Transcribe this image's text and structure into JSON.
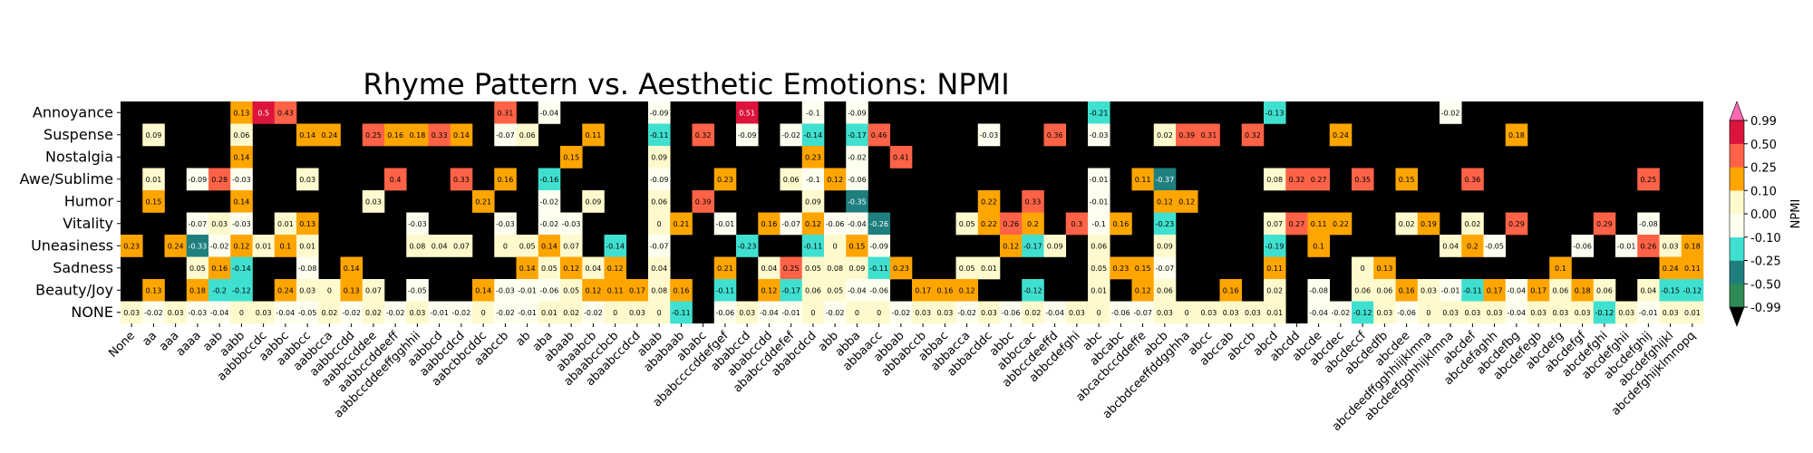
{
  "chart_data": {
    "type": "heatmap",
    "title": "Rhyme Pattern vs. Aesthetic Emotions: NPMI",
    "colorbar_label": "NPMI",
    "colorbar_ticks": [
      "0.99",
      "0.50",
      "0.25",
      "0.10",
      "0.00",
      "-0.10",
      "-0.25",
      "-0.50",
      "-0.99"
    ],
    "colorbar_bounds": [
      -0.99,
      -0.5,
      -0.25,
      -0.1,
      0.0,
      0.1,
      0.25,
      0.5,
      0.99
    ],
    "colorbar_colors": [
      "#2e8b57",
      "#1f7f7f",
      "#40e0d0",
      "#fffff0",
      "#fffacd",
      "#ffa500",
      "#ff6347",
      "#dc143c"
    ],
    "colorbar_under": "#000000",
    "colorbar_over": "#ff69b4",
    "missing_color": "#000000",
    "rows": [
      "Annoyance",
      "Suspense",
      "Nostalgia",
      "Awe/Sublime",
      "Humor",
      "Vitality",
      "Uneasiness",
      "Sadness",
      "Beauty/Joy",
      "NONE"
    ],
    "columns": [
      "None",
      "aa",
      "aaa",
      "aaaa",
      "aab",
      "aabb",
      "aabbbccdc",
      "aabbc",
      "aabbcc",
      "aabbcca",
      "aabbccdd",
      "aabbccddee",
      "aabbccddeeff",
      "aabbccddeeffgghhii",
      "aabbcd",
      "aabbcdcd",
      "aabcbbcddc",
      "aabccb",
      "ab",
      "aba",
      "abaab",
      "abaabcb",
      "abaabccbcb",
      "abaabccdcd",
      "abab",
      "ababaab",
      "ababc",
      "ababccccddefgef",
      "ababccd",
      "ababccdd",
      "ababccddefef",
      "ababcdcd",
      "abb",
      "abba",
      "abbaacc",
      "abbab",
      "abbabccb",
      "abbac",
      "abbacca",
      "abbacddc",
      "abbc",
      "abbccac",
      "abbccdeeffd",
      "abbcdefghi",
      "abc",
      "abcabc",
      "abcacbccddeffe",
      "abcb",
      "abcbdceeffddgghha",
      "abcc",
      "abccab",
      "abccb",
      "abcd",
      "abcdd",
      "abcde",
      "abcdec",
      "abcdeccf",
      "abcdedfb",
      "abcdee",
      "abcdeedffgghhiijklmna",
      "abcdeefgghhijklmna",
      "abcdef",
      "abcdefaghh",
      "abcdefbg",
      "abcdefegb",
      "abcdefg",
      "abcdefgf",
      "abcdefghi",
      "abcdefghii",
      "abcdefghij",
      "abcdefghijkl",
      "abcdefghijklmnopq"
    ],
    "values": [
      [
        null,
        null,
        null,
        null,
        null,
        0.13,
        0.5,
        0.43,
        null,
        null,
        null,
        null,
        null,
        null,
        null,
        null,
        null,
        0.31,
        null,
        -0.04,
        null,
        null,
        null,
        null,
        -0.09,
        null,
        null,
        null,
        0.51,
        null,
        null,
        -0.1,
        null,
        -0.09,
        null,
        null,
        null,
        null,
        null,
        null,
        null,
        null,
        null,
        null,
        -0.21,
        null,
        null,
        null,
        null,
        null,
        null,
        null,
        -0.13,
        null,
        null,
        null,
        null,
        null,
        null,
        null,
        -0.02,
        null,
        null,
        null,
        null,
        null,
        null,
        null,
        null,
        null,
        null,
        null
      ],
      [
        null,
        0.09,
        null,
        null,
        null,
        0.06,
        null,
        null,
        0.14,
        0.24,
        null,
        0.25,
        0.16,
        0.18,
        0.33,
        0.14,
        null,
        -0.07,
        0.06,
        null,
        null,
        0.11,
        null,
        null,
        -0.11,
        null,
        0.32,
        null,
        -0.09,
        null,
        -0.02,
        -0.14,
        null,
        -0.17,
        0.46,
        null,
        null,
        null,
        null,
        -0.03,
        null,
        null,
        0.36,
        null,
        -0.03,
        null,
        null,
        0.02,
        0.39,
        0.31,
        null,
        0.32,
        null,
        null,
        null,
        0.24,
        null,
        null,
        null,
        null,
        null,
        null,
        null,
        0.18,
        null,
        null,
        null,
        null,
        null,
        null,
        null,
        null
      ],
      [
        null,
        null,
        null,
        null,
        null,
        0.14,
        null,
        null,
        null,
        null,
        null,
        null,
        null,
        null,
        null,
        null,
        null,
        null,
        null,
        null,
        0.15,
        null,
        null,
        null,
        0.09,
        null,
        null,
        null,
        null,
        null,
        null,
        0.23,
        null,
        -0.02,
        null,
        0.41,
        null,
        null,
        null,
        null,
        null,
        null,
        null,
        null,
        null,
        null,
        null,
        null,
        null,
        null,
        null,
        null,
        null,
        null,
        null,
        null,
        null,
        null,
        null,
        null,
        null,
        null,
        null,
        null,
        null,
        null,
        null,
        null,
        null,
        null,
        null,
        null
      ],
      [
        null,
        0.01,
        null,
        -0.09,
        0.28,
        -0.03,
        null,
        null,
        0.03,
        null,
        null,
        null,
        0.4,
        null,
        null,
        0.33,
        null,
        0.16,
        null,
        -0.16,
        null,
        null,
        null,
        null,
        -0.09,
        null,
        null,
        0.23,
        null,
        null,
        0.06,
        -0.1,
        0.12,
        -0.06,
        null,
        null,
        null,
        null,
        null,
        null,
        null,
        null,
        null,
        null,
        -0.01,
        null,
        0.11,
        -0.37,
        null,
        null,
        null,
        null,
        0.08,
        0.32,
        0.27,
        null,
        0.35,
        null,
        0.15,
        null,
        null,
        0.36,
        null,
        null,
        null,
        null,
        null,
        null,
        null,
        0.25,
        null,
        null
      ],
      [
        null,
        0.15,
        null,
        null,
        null,
        0.14,
        null,
        null,
        null,
        null,
        null,
        0.03,
        null,
        null,
        null,
        null,
        0.21,
        null,
        null,
        -0.02,
        null,
        0.09,
        null,
        null,
        0.06,
        null,
        0.39,
        null,
        null,
        null,
        null,
        0.09,
        null,
        -0.35,
        null,
        null,
        null,
        null,
        null,
        0.22,
        null,
        0.33,
        null,
        null,
        -0.01,
        null,
        null,
        0.12,
        0.12,
        null,
        null,
        null,
        null,
        null,
        null,
        null,
        null,
        null,
        null,
        null,
        null,
        null,
        null,
        null,
        null,
        null,
        null,
        null,
        null,
        null,
        null,
        null
      ],
      [
        null,
        null,
        null,
        -0.07,
        0.03,
        -0.03,
        null,
        0.01,
        0.13,
        null,
        null,
        null,
        null,
        -0.03,
        null,
        null,
        null,
        -0.03,
        null,
        -0.02,
        -0.03,
        null,
        null,
        null,
        0.0,
        0.21,
        null,
        -0.01,
        null,
        0.16,
        -0.07,
        0.12,
        -0.06,
        -0.04,
        -0.26,
        null,
        null,
        null,
        0.05,
        0.22,
        0.26,
        0.2,
        null,
        0.3,
        -0.1,
        0.16,
        null,
        -0.23,
        null,
        null,
        null,
        null,
        0.07,
        0.27,
        0.11,
        0.22,
        null,
        null,
        0.02,
        0.19,
        null,
        0.02,
        null,
        0.29,
        null,
        null,
        null,
        0.29,
        null,
        -0.08,
        null,
        null
      ],
      [
        0.23,
        null,
        0.24,
        -0.33,
        -0.02,
        0.12,
        0.01,
        0.1,
        0.01,
        null,
        null,
        null,
        null,
        0.08,
        0.04,
        0.07,
        null,
        0.0,
        0.05,
        0.14,
        0.07,
        null,
        -0.14,
        null,
        -0.07,
        null,
        null,
        null,
        -0.23,
        null,
        null,
        -0.11,
        -0.0,
        0.15,
        -0.09,
        null,
        null,
        null,
        null,
        null,
        0.12,
        -0.17,
        0.09,
        null,
        0.06,
        null,
        null,
        0.09,
        null,
        null,
        null,
        null,
        -0.19,
        null,
        0.1,
        null,
        null,
        null,
        null,
        null,
        0.04,
        0.2,
        -0.05,
        null,
        null,
        null,
        -0.06,
        null,
        -0.01,
        0.26,
        0.03,
        0.18
      ],
      [
        null,
        null,
        null,
        0.05,
        0.16,
        -0.14,
        null,
        null,
        -0.08,
        null,
        0.14,
        null,
        null,
        null,
        null,
        null,
        null,
        null,
        0.14,
        0.05,
        0.12,
        0.04,
        0.12,
        null,
        0.04,
        null,
        null,
        0.21,
        null,
        0.04,
        0.25,
        0.05,
        0.08,
        0.09,
        -0.11,
        0.23,
        null,
        null,
        0.05,
        0.01,
        null,
        null,
        null,
        null,
        0.05,
        0.23,
        0.15,
        -0.07,
        null,
        null,
        null,
        null,
        0.11,
        null,
        null,
        null,
        -0.0,
        0.13,
        null,
        null,
        null,
        null,
        null,
        null,
        null,
        0.1,
        null,
        null,
        null,
        null,
        0.24,
        0.11
      ],
      [
        null,
        0.13,
        null,
        0.18,
        -0.2,
        -0.12,
        null,
        0.24,
        0.03,
        0.0,
        0.13,
        0.07,
        null,
        -0.05,
        null,
        null,
        0.14,
        -0.03,
        -0.01,
        -0.06,
        0.05,
        0.12,
        0.11,
        0.17,
        0.08,
        0.16,
        null,
        -0.11,
        null,
        0.12,
        -0.17,
        0.06,
        0.05,
        -0.04,
        -0.06,
        null,
        0.17,
        0.16,
        0.12,
        null,
        null,
        -0.12,
        null,
        null,
        0.01,
        null,
        0.12,
        0.06,
        null,
        null,
        0.16,
        null,
        0.02,
        null,
        -0.08,
        null,
        0.06,
        0.06,
        0.16,
        0.03,
        -0.01,
        -0.11,
        0.17,
        -0.04,
        0.17,
        0.06,
        0.18,
        0.06,
        null,
        0.04,
        -0.15,
        -0.12
      ],
      [
        0.03,
        -0.02,
        0.03,
        -0.03,
        -0.04,
        -0.0,
        0.03,
        -0.04,
        -0.05,
        0.02,
        -0.02,
        0.02,
        -0.02,
        0.03,
        -0.01,
        -0.02,
        0.0,
        -0.02,
        -0.01,
        0.01,
        0.02,
        -0.02,
        -0.0,
        0.03,
        -0.0,
        -0.11,
        null,
        -0.06,
        0.03,
        -0.04,
        -0.01,
        0.0,
        -0.02,
        0.0,
        -0.0,
        -0.02,
        0.03,
        0.03,
        -0.02,
        0.03,
        -0.06,
        0.02,
        -0.04,
        0.03,
        -0.0,
        -0.06,
        -0.07,
        0.03,
        0.0,
        0.03,
        0.03,
        0.03,
        0.01,
        null,
        -0.04,
        -0.02,
        -0.12,
        0.03,
        -0.06,
        -0.0,
        0.03,
        0.03,
        0.03,
        -0.04,
        0.03,
        0.03,
        0.03,
        -0.12,
        0.03,
        -0.01,
        0.03,
        0.01
      ]
    ]
  }
}
